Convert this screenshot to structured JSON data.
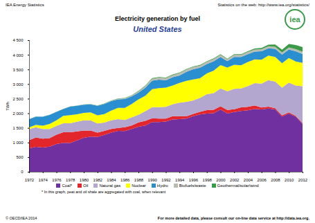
{
  "chart_data": {
    "type": "area",
    "title": "Electricity generation by fuel",
    "subtitle": "United States",
    "header_left": "IEA Energy Statistics",
    "header_right": "Statistics on the web: http://www.iea.org/statistics/",
    "logo": "iea",
    "footnote": "* In this graph, peat and oil shale are aggregated with coal, when relevant",
    "footer_left": "© OECD/IEA 2014",
    "footer_right": "For more detailed data, please consult our on-line data service at http://data.iea.org.",
    "y_label": "TWh",
    "stacked": true,
    "grid": false,
    "legend": "bottom",
    "x": [
      1972,
      1973,
      1974,
      1975,
      1976,
      1977,
      1978,
      1979,
      1980,
      1981,
      1982,
      1983,
      1984,
      1985,
      1986,
      1987,
      1988,
      1989,
      1990,
      1991,
      1992,
      1993,
      1994,
      1995,
      1996,
      1997,
      1998,
      1999,
      2000,
      2001,
      2002,
      2003,
      2004,
      2005,
      2006,
      2007,
      2008,
      2009,
      2010,
      2011,
      2012
    ],
    "xlim": [
      1972,
      2012
    ],
    "xticks": [
      1972,
      1974,
      1976,
      1978,
      1980,
      1982,
      1984,
      1986,
      1988,
      1990,
      1992,
      1994,
      1996,
      1998,
      2000,
      2002,
      2004,
      2006,
      2008,
      2010,
      2012
    ],
    "ylim": [
      0,
      4500
    ],
    "yticks": [
      0,
      500,
      {
        "value": 1000,
        "label": "1 000"
      },
      {
        "value": 1500,
        "label": "1 500"
      },
      {
        "value": 2000,
        "label": "2 000"
      },
      {
        "value": 2500,
        "label": "2 500"
      },
      {
        "value": 3000,
        "label": "3 000"
      },
      {
        "value": 3500,
        "label": "3 500"
      },
      {
        "value": 4000,
        "label": "4 000"
      },
      {
        "value": 4500,
        "label": "4 500"
      }
    ],
    "series": [
      {
        "name": "Coal*",
        "color": "#7030a0",
        "values": [
          800,
          850,
          830,
          860,
          950,
          990,
          980,
          1070,
          1160,
          1200,
          1190,
          1260,
          1340,
          1400,
          1390,
          1460,
          1540,
          1580,
          1700,
          1700,
          1720,
          1790,
          1800,
          1820,
          1900,
          1960,
          1990,
          2000,
          2130,
          1990,
          2040,
          2080,
          2100,
          2150,
          2130,
          2160,
          2130,
          1890,
          1990,
          1880,
          1640
        ]
      },
      {
        "name": "Oil",
        "color": "#e3262b",
        "values": [
          280,
          320,
          300,
          290,
          320,
          360,
          370,
          310,
          250,
          210,
          150,
          140,
          120,
          100,
          130,
          120,
          150,
          160,
          130,
          120,
          100,
          110,
          100,
          75,
          80,
          90,
          120,
          120,
          110,
          125,
          95,
          120,
          120,
          120,
          65,
          65,
          45,
          40,
          40,
          30,
          25
        ]
      },
      {
        "name": "Natural gas",
        "color": "#b3a6cf",
        "values": [
          380,
          350,
          330,
          310,
          300,
          310,
          310,
          330,
          350,
          350,
          310,
          280,
          300,
          300,
          250,
          280,
          260,
          330,
          380,
          390,
          400,
          410,
          460,
          500,
          460,
          480,
          540,
          570,
          610,
          640,
          700,
          650,
          710,
          760,
          820,
          910,
          910,
          950,
          1020,
          1040,
          1260
        ]
      },
      {
        "name": "Nuclear",
        "color": "#ffff00",
        "values": [
          54,
          83,
          114,
          173,
          191,
          251,
          276,
          255,
          251,
          273,
          283,
          294,
          328,
          384,
          414,
          455,
          527,
          529,
          612,
          649,
          656,
          640,
          675,
          714,
          715,
          666,
          713,
          770,
          797,
          808,
          823,
          794,
          823,
          810,
          816,
          837,
          838,
          830,
          839,
          821,
          801
        ]
      },
      {
        "name": "Hydro",
        "color": "#2a8fd0",
        "values": [
          280,
          280,
          310,
          310,
          290,
          230,
          290,
          290,
          280,
          270,
          320,
          340,
          330,
          290,
          300,
          260,
          230,
          270,
          290,
          290,
          250,
          280,
          260,
          310,
          350,
          360,
          320,
          320,
          280,
          220,
          270,
          280,
          270,
          270,
          290,
          250,
          280,
          300,
          290,
          350,
          300
        ]
      },
      {
        "name": "Biofuels/waste",
        "color": "#b9bcb0",
        "values": [
          2,
          2,
          2,
          2,
          2,
          2,
          2,
          2,
          5,
          5,
          8,
          10,
          15,
          20,
          25,
          30,
          40,
          60,
          70,
          72,
          75,
          76,
          78,
          75,
          75,
          76,
          75,
          76,
          72,
          65,
          70,
          71,
          72,
          73,
          73,
          72,
          73,
          72,
          75,
          74,
          75
        ]
      },
      {
        "name": "Geothermal/solar/wind",
        "color": "#3a9a48",
        "values": [
          2,
          3,
          3,
          4,
          4,
          4,
          4,
          4,
          5,
          6,
          7,
          8,
          9,
          10,
          12,
          14,
          16,
          18,
          20,
          20,
          20,
          20,
          20,
          19,
          20,
          19,
          20,
          21,
          20,
          19,
          22,
          24,
          26,
          35,
          40,
          55,
          75,
          95,
          115,
          140,
          165
        ]
      }
    ]
  }
}
